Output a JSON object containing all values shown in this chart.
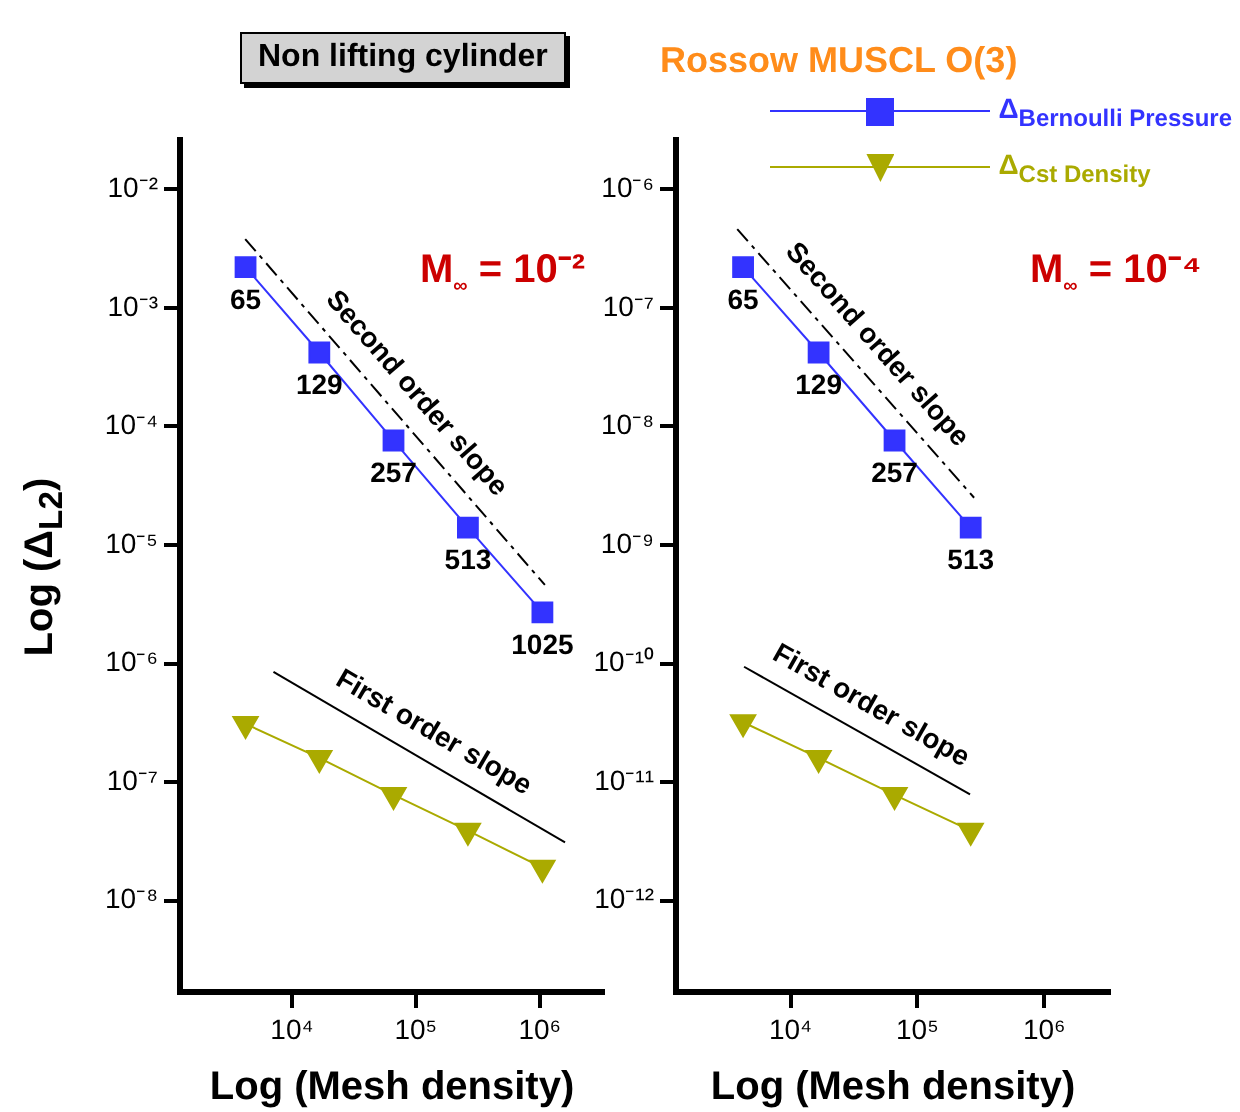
{
  "chart_data": [
    {
      "type": "line",
      "title": "Non lifting cylinder",
      "xlabel": "Log (Mesh density)",
      "ylabel": "Log (Δ$_{L2}$)",
      "log": "xy",
      "grid": false,
      "legend": false,
      "xlim": [
        1250,
        3300000
      ],
      "ylim": [
        1.7e-09,
        0.026
      ],
      "xticks": [
        {
          "value": 10000,
          "label": "10⁴"
        },
        {
          "value": 100000,
          "label": "10⁵"
        },
        {
          "value": 1000000,
          "label": "10⁶"
        }
      ],
      "yticks": [
        {
          "value": 1e-08,
          "label": "10⁻⁸"
        },
        {
          "value": 1e-07,
          "label": "10⁻⁷"
        },
        {
          "value": 1e-06,
          "label": "10⁻⁶"
        },
        {
          "value": 1e-05,
          "label": "10⁻⁵"
        },
        {
          "value": 0.0001,
          "label": "10⁻⁴"
        },
        {
          "value": 0.001,
          "label": "10⁻³"
        },
        {
          "value": 0.01,
          "label": "10⁻²"
        }
      ],
      "series": [
        {
          "type": "line",
          "name": "Second order slope",
          "x": [
            4200,
            1100000
          ],
          "values": [
            0.0038,
            4.6e-06
          ],
          "color": "#000000",
          "marker": "none",
          "line_style": "dashed"
        },
        {
          "type": "line",
          "name": "First order slope",
          "x": [
            7100,
            1600000
          ],
          "values": [
            8.5e-07,
            3.1e-08
          ],
          "color": "#000000",
          "marker": "none",
          "line_style": "solid"
        },
        {
          "type": "line",
          "x": [
            4225,
            16641,
            66049,
            263169,
            1050625
          ],
          "values": [
            0.0022,
            0.00042,
            7.6e-05,
            1.4e-05,
            2.7e-06
          ],
          "color": "#3333ff",
          "marker": "square"
        },
        {
          "type": "line",
          "x": [
            4225,
            16641,
            66049,
            263169,
            1050625
          ],
          "values": [
            3.1e-07,
            1.6e-07,
            7.8e-08,
            3.9e-08,
            1.9e-08
          ],
          "color": "#aaaa00",
          "marker": "triangle"
        }
      ],
      "annotations": [
        {
          "text": "65",
          "x": 4225,
          "y": 0.0022
        },
        {
          "text": "129",
          "x": 16641,
          "y": 0.00042
        },
        {
          "text": "257",
          "x": 66049,
          "y": 7.6e-05
        },
        {
          "text": "513",
          "x": 263169,
          "y": 1.4e-05
        },
        {
          "text": "1025",
          "x": 1050625,
          "y": 2.7e-06
        },
        "M$_{∞}$ = 10⁻²"
      ]
    },
    {
      "type": "line",
      "title": "Rossow MUSCL O(3)",
      "xlabel": "Log (Mesh density)",
      "log": "xy",
      "grid": false,
      "legend": "top right",
      "xlim": [
        1250,
        3300000
      ],
      "ylim": [
        1.7e-13,
        2.6e-06
      ],
      "xticks": [
        {
          "value": 10000,
          "label": "10⁴"
        },
        {
          "value": 100000,
          "label": "10⁵"
        },
        {
          "value": 1000000,
          "label": "10⁶"
        }
      ],
      "yticks": [
        {
          "value": 1e-12,
          "label": "10⁻¹²"
        },
        {
          "value": 1e-11,
          "label": "10⁻¹¹"
        },
        {
          "value": 1e-10,
          "label": "10⁻¹⁰"
        },
        {
          "value": 1e-09,
          "label": "10⁻⁹"
        },
        {
          "value": 1e-08,
          "label": "10⁻⁸"
        },
        {
          "value": 1e-07,
          "label": "10⁻⁷"
        },
        {
          "value": 1e-06,
          "label": "10⁻⁶"
        }
      ],
      "series": [
        {
          "type": "line",
          "name": "Second order slope",
          "x": [
            3800,
            280000
          ],
          "values": [
            4.6e-07,
            2.5e-09
          ],
          "color": "#000000",
          "marker": "none",
          "line_style": "dashed"
        },
        {
          "type": "line",
          "name": "First order slope",
          "x": [
            4300,
            260000
          ],
          "values": [
            9.4e-11,
            7.9e-12
          ],
          "color": "#000000",
          "marker": "none",
          "line_style": "solid"
        },
        {
          "type": "line",
          "name": "Δ$_{Bernoulli Pressure}$",
          "x": [
            4225,
            16641,
            66049,
            263169
          ],
          "values": [
            2.2e-07,
            4.2e-08,
            7.6e-09,
            1.4e-09
          ],
          "color": "#3333ff",
          "marker": "square"
        },
        {
          "type": "line",
          "name": "Δ$_{Cst Density}$",
          "x": [
            4225,
            16641,
            66049,
            263169
          ],
          "values": [
            3.2e-11,
            1.6e-11,
            7.8e-12,
            3.9e-12
          ],
          "color": "#aaaa00",
          "marker": "triangle"
        }
      ],
      "annotations": [
        {
          "text": "65",
          "x": 4225,
          "y": 2.2e-07
        },
        {
          "text": "129",
          "x": 16641,
          "y": 4.2e-08
        },
        {
          "text": "257",
          "x": 66049,
          "y": 7.6e-09
        },
        {
          "text": "513",
          "x": 263169,
          "y": 1.4e-09
        },
        "M$_{∞}$ = 10⁻⁴"
      ]
    }
  ]
}
